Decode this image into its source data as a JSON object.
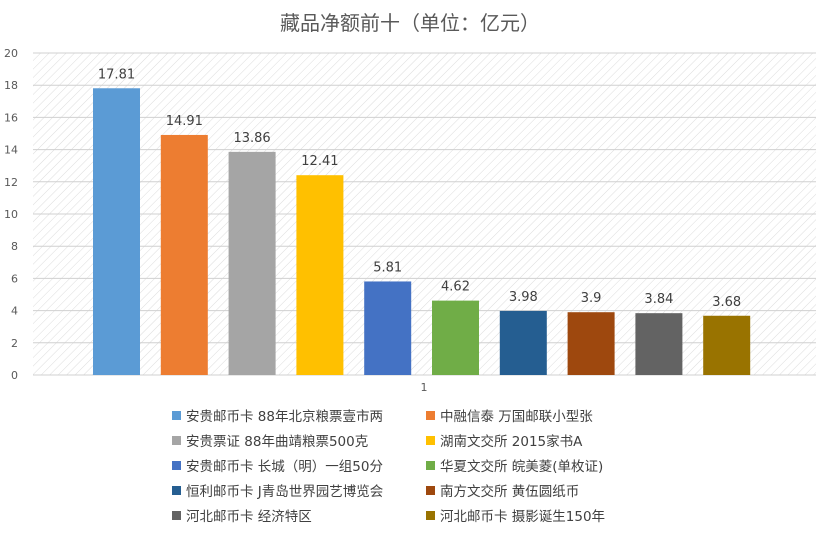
{
  "chart_data": {
    "type": "bar",
    "title": "藏品净额前十（单位：亿元）",
    "categories": [
      "1"
    ],
    "xlabel": "",
    "ylabel": "",
    "ylim": [
      0,
      20
    ],
    "yticks": [
      "0",
      "2",
      "4",
      "6",
      "8",
      "10",
      "12",
      "14",
      "16",
      "18",
      "20"
    ],
    "grid": true,
    "legend_position": "bottom",
    "series": [
      {
        "name": "安贵邮币卡 88年北京粮票壹市两",
        "value": 17.81,
        "label": "17.81",
        "color": "#5B9BD5"
      },
      {
        "name": "中融信泰 万国邮联小型张",
        "value": 14.91,
        "label": "14.91",
        "color": "#ED7D31"
      },
      {
        "name": "安贵票证 88年曲靖粮票500克",
        "value": 13.86,
        "label": "13.86",
        "color": "#A5A5A5"
      },
      {
        "name": "湖南文交所 2015家书A",
        "value": 12.41,
        "label": "12.41",
        "color": "#FFC000"
      },
      {
        "name": "安贵邮币卡 长城（明）一组50分",
        "value": 5.81,
        "label": "5.81",
        "color": "#4472C4"
      },
      {
        "name": "华夏文交所 皖美菱(单枚证)",
        "value": 4.62,
        "label": "4.62",
        "color": "#70AD47"
      },
      {
        "name": "恒利邮币卡 J青岛世界园艺博览会",
        "value": 3.98,
        "label": "3.98",
        "color": "#255E91"
      },
      {
        "name": "南方文交所 黄伍圆纸币",
        "value": 3.9,
        "label": "3.9",
        "color": "#9E480E"
      },
      {
        "name": "河北邮币卡 经济特区",
        "value": 3.84,
        "label": "3.84",
        "color": "#636363"
      },
      {
        "name": "河北邮币卡 摄影诞生150年",
        "value": 3.68,
        "label": "3.68",
        "color": "#997300"
      }
    ]
  }
}
